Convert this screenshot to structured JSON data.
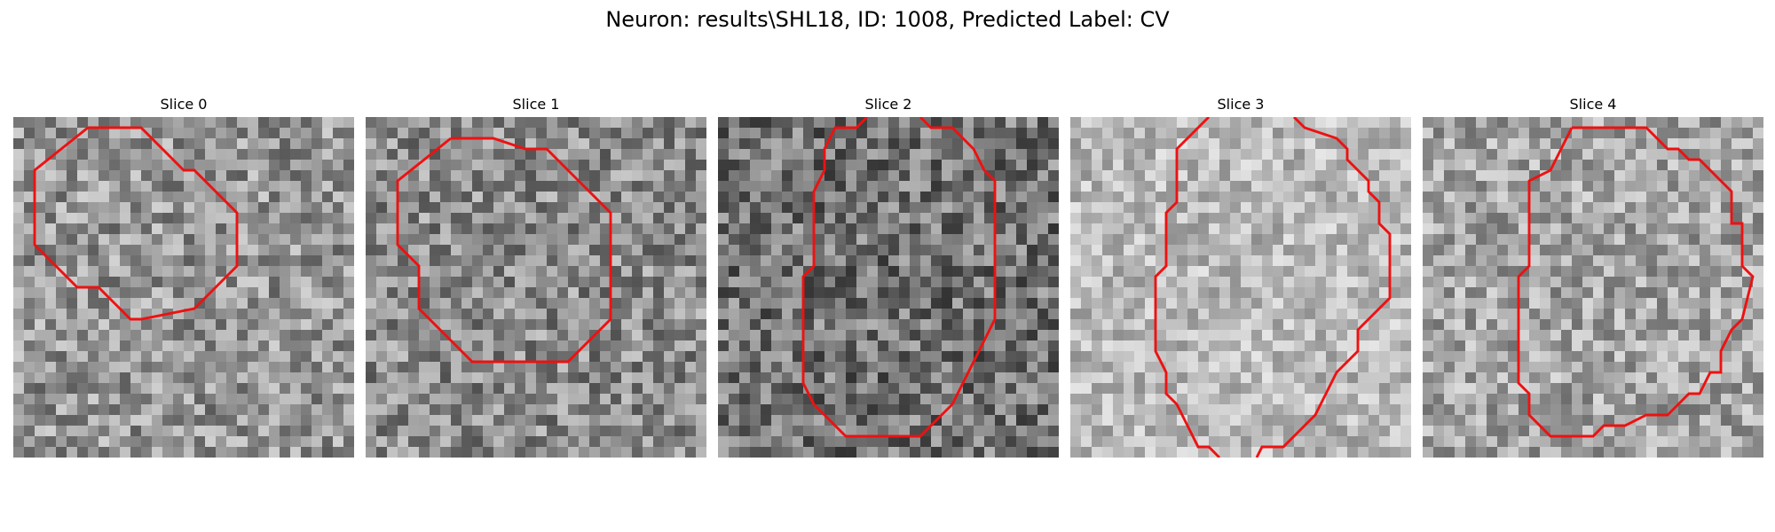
{
  "figure": {
    "title": "Neuron: results\\SHL18, ID: 1008, Predicted Label: CV"
  },
  "panels": [
    {
      "title": "Slice 0"
    },
    {
      "title": "Slice 1"
    },
    {
      "title": "Slice 2"
    },
    {
      "title": "Slice 3"
    },
    {
      "title": "Slice 4"
    }
  ],
  "colors": {
    "contour": "#ee1111"
  }
}
